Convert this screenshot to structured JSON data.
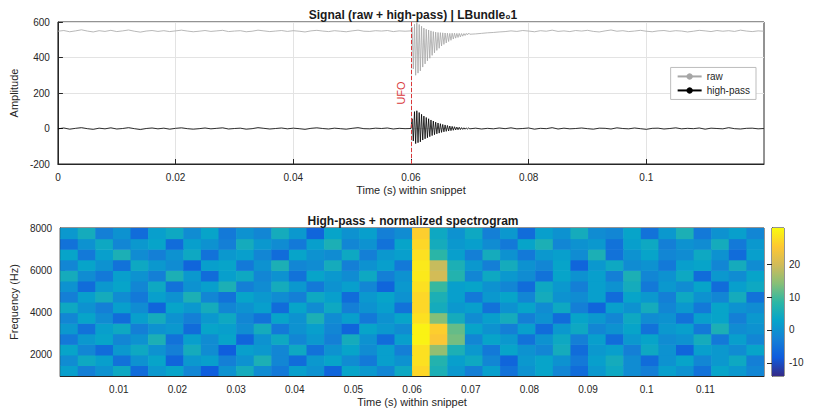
{
  "chart_data": [
    {
      "type": "line",
      "title": "Signal (raw + high-pass) | LBundle₀1",
      "x_label": "Time (s) within snippet",
      "y_label": "Amplitude",
      "x": [
        0,
        0.001,
        0.002,
        0.003,
        0.004,
        0.005,
        0.006,
        0.007,
        0.008,
        0.009,
        0.01,
        0.011,
        0.012,
        0.013,
        0.014,
        0.015,
        0.016,
        0.017,
        0.018,
        0.019,
        0.02,
        0.021,
        0.022,
        0.023,
        0.024,
        0.025,
        0.026,
        0.027,
        0.028,
        0.029,
        0.03,
        0.031,
        0.032,
        0.033,
        0.034,
        0.035,
        0.036,
        0.037,
        0.038,
        0.039,
        0.04,
        0.041,
        0.042,
        0.043,
        0.044,
        0.045,
        0.046,
        0.047,
        0.048,
        0.049,
        0.05,
        0.051,
        0.052,
        0.053,
        0.054,
        0.055,
        0.056,
        0.057,
        0.058,
        0.059,
        0.06,
        0.0602,
        0.0604,
        0.0606,
        0.0608,
        0.061,
        0.0612,
        0.0614,
        0.0616,
        0.0618,
        0.062,
        0.0622,
        0.0624,
        0.0626,
        0.0628,
        0.063,
        0.0632,
        0.0634,
        0.0636,
        0.0638,
        0.064,
        0.0642,
        0.0644,
        0.0646,
        0.0648,
        0.065,
        0.0652,
        0.0654,
        0.0656,
        0.0658,
        0.066,
        0.0662,
        0.0664,
        0.0666,
        0.0668,
        0.067,
        0.0672,
        0.0674,
        0.0676,
        0.0678,
        0.068,
        0.0682,
        0.0684,
        0.0686,
        0.0688,
        0.069,
        0.0692,
        0.0694,
        0.0696,
        0.0698,
        0.07,
        0.071,
        0.072,
        0.073,
        0.074,
        0.075,
        0.076,
        0.077,
        0.078,
        0.079,
        0.08,
        0.081,
        0.082,
        0.083,
        0.084,
        0.085,
        0.086,
        0.087,
        0.088,
        0.089,
        0.09,
        0.091,
        0.092,
        0.093,
        0.094,
        0.095,
        0.096,
        0.097,
        0.098,
        0.099,
        0.1,
        0.101,
        0.102,
        0.103,
        0.104,
        0.105,
        0.106,
        0.107,
        0.108,
        0.109,
        0.11,
        0.111,
        0.112,
        0.113,
        0.114,
        0.115,
        0.116,
        0.117,
        0.118,
        0.119,
        0.12
      ],
      "series": [
        {
          "name": "raw",
          "color": "#a6a6a6",
          "values": [
            548,
            552,
            545,
            550,
            556,
            549,
            544,
            551,
            547,
            553,
            546,
            550,
            555,
            548,
            543,
            549,
            552,
            547,
            551,
            546,
            550,
            554,
            549,
            545,
            548,
            552,
            547,
            550,
            553,
            546,
            549,
            551,
            545,
            548,
            554,
            550,
            546,
            549,
            552,
            547,
            551,
            548,
            544,
            550,
            553,
            549,
            546,
            551,
            548,
            545,
            550,
            554,
            548,
            547,
            551,
            549,
            552,
            546,
            550,
            548,
            550,
            572,
            335,
            587,
            300,
            598,
            312,
            586,
            325,
            576,
            346,
            566,
            364,
            559,
            381,
            555,
            396,
            550,
            412,
            546,
            426,
            543,
            440,
            541,
            452,
            540,
            465,
            539,
            474,
            538,
            482,
            537,
            490,
            536,
            497,
            537,
            504,
            537,
            509,
            536,
            513,
            536,
            516,
            535,
            520,
            535,
            524,
            536,
            527,
            538,
            531,
            533,
            536,
            539,
            541,
            544,
            546,
            550,
            547,
            552,
            549,
            545,
            551,
            548,
            554,
            547,
            550,
            546,
            552,
            549,
            553,
            547,
            544,
            550,
            555,
            548,
            551,
            546,
            549,
            553,
            548,
            545,
            550,
            552,
            547,
            551,
            549,
            544,
            548,
            553,
            550,
            546,
            552,
            548,
            551,
            547,
            554,
            549,
            546,
            550,
            548
          ]
        },
        {
          "name": "high-pass",
          "color": "#000000",
          "values": [
            -2,
            3,
            -4,
            1,
            5,
            -1,
            -5,
            2,
            -2,
            4,
            -3,
            0,
            5,
            -1,
            -6,
            0,
            3,
            -2,
            2,
            -4,
            1,
            4,
            -1,
            -4,
            -1,
            3,
            -2,
            1,
            4,
            -3,
            0,
            2,
            -4,
            -1,
            5,
            1,
            -3,
            0,
            3,
            -2,
            2,
            -1,
            -5,
            1,
            4,
            0,
            -3,
            2,
            -1,
            -4,
            1,
            5,
            -1,
            -2,
            2,
            0,
            3,
            -3,
            1,
            -1,
            0,
            55,
            -70,
            95,
            -85,
            100,
            -80,
            90,
            -75,
            80,
            -65,
            70,
            -58,
            62,
            -52,
            55,
            -46,
            48,
            -40,
            42,
            -35,
            36,
            -30,
            31,
            -26,
            27,
            -22,
            23,
            -19,
            20,
            -16,
            17,
            -14,
            14,
            -12,
            12,
            -10,
            10,
            -8,
            8,
            -7,
            7,
            -6,
            5,
            -5,
            4,
            -4,
            3,
            -3,
            3,
            -2,
            2,
            -3,
            1,
            -2,
            3,
            -1,
            4,
            -2,
            0,
            3,
            -4,
            1,
            -1,
            5,
            -3,
            2,
            -2,
            0,
            3,
            -1,
            -4,
            2,
            1,
            -3,
            4,
            0,
            -2,
            3,
            -1,
            -5,
            1,
            2,
            -3,
            0,
            4,
            -2,
            1,
            -1,
            3,
            -4,
            2,
            0,
            -2,
            5,
            -1,
            -3,
            1,
            2,
            -2,
            0
          ]
        }
      ],
      "xlim": [
        0,
        0.12
      ],
      "xticks": [
        0,
        0.02,
        0.04,
        0.06,
        0.08,
        0.1
      ],
      "ylim": [
        -200,
        600
      ],
      "yticks": [
        -200,
        0,
        200,
        400,
        600
      ],
      "grid": true,
      "legend": "right",
      "annotations": [
        {
          "text": "UFO",
          "x": 0.06,
          "color": "#d9383a",
          "line_style": "dashed"
        }
      ]
    },
    {
      "type": "heatmap",
      "title": "High-pass + normalized spectrogram",
      "x_label": "Time (s) within snippet",
      "y_label": "Frequency (Hz)",
      "x": [
        0.0015,
        0.0045,
        0.0075,
        0.0105,
        0.0135,
        0.0165,
        0.0195,
        0.0225,
        0.0255,
        0.0285,
        0.0315,
        0.0345,
        0.0375,
        0.0405,
        0.0435,
        0.0465,
        0.0495,
        0.0525,
        0.0555,
        0.0585,
        0.0615,
        0.0645,
        0.0675,
        0.0705,
        0.0735,
        0.0765,
        0.0795,
        0.0825,
        0.0855,
        0.0885,
        0.0915,
        0.0945,
        0.0975,
        0.1005,
        0.1035,
        0.1065,
        0.1095,
        0.1125,
        0.1155,
        0.1185
      ],
      "y": [
        1250,
        1750,
        2250,
        2750,
        3250,
        3750,
        4250,
        4750,
        5250,
        5750,
        6250,
        6750,
        7250,
        7750
      ],
      "cells": [
        [
          2,
          -3,
          0,
          4,
          -6,
          1,
          3,
          -2,
          -8,
          0,
          5,
          -1,
          -4,
          2,
          0,
          -7,
          3,
          1,
          -2,
          4,
          27,
          6,
          1,
          -3,
          2,
          -5,
          0,
          3,
          -2,
          -6,
          1,
          4,
          -1,
          -3,
          2,
          0,
          -5,
          3,
          1,
          -2
        ],
        [
          -1,
          4,
          2,
          -5,
          0,
          3,
          -7,
          1,
          2,
          -3,
          0,
          6,
          -2,
          -6,
          1,
          3,
          -1,
          -4,
          2,
          0,
          28,
          7,
          2,
          4,
          -2,
          -7,
          1,
          3,
          0,
          -4,
          2,
          5,
          -1,
          -6,
          0,
          3,
          -2,
          1,
          4,
          -3
        ],
        [
          3,
          -2,
          -6,
          1,
          4,
          0,
          -3,
          5,
          -1,
          -8,
          2,
          1,
          -2,
          4,
          -5,
          0,
          3,
          -1,
          2,
          -3,
          28,
          15,
          6,
          1,
          -4,
          3,
          0,
          -2,
          5,
          -6,
          1,
          2,
          -3,
          4,
          0,
          -7,
          2,
          1,
          -1,
          3
        ],
        [
          -4,
          1,
          3,
          -2,
          0,
          6,
          -5,
          2,
          -1,
          3,
          -7,
          0,
          4,
          -2,
          1,
          -3,
          5,
          0,
          -6,
          2,
          30,
          25,
          13,
          -2,
          3,
          1,
          -5,
          0,
          4,
          -3,
          2,
          -6,
          1,
          3,
          -1,
          0,
          5,
          -4,
          2,
          -2
        ],
        [
          1,
          -5,
          2,
          4,
          -3,
          0,
          1,
          -6,
          3,
          2,
          -1,
          5,
          -4,
          0,
          2,
          -2,
          -7,
          3,
          1,
          -1,
          30,
          26,
          12,
          3,
          0,
          -3,
          2,
          -6,
          1,
          4,
          -2,
          0,
          3,
          -5,
          1,
          2,
          -4,
          6,
          -1,
          0
        ],
        [
          -2,
          3,
          -1,
          -6,
          2,
          5,
          0,
          -3,
          1,
          4,
          -2,
          -5,
          3,
          0,
          6,
          -1,
          2,
          -4,
          0,
          3,
          28,
          14,
          5,
          -1,
          2,
          5,
          -3,
          0,
          -6,
          3,
          1,
          -2,
          4,
          -1,
          0,
          -5,
          2,
          3,
          -3,
          1
        ],
        [
          4,
          0,
          -3,
          2,
          -1,
          -7,
          3,
          1,
          5,
          -2,
          0,
          2,
          -6,
          3,
          -1,
          4,
          -3,
          0,
          2,
          -5,
          27,
          5,
          1,
          2,
          -5,
          0,
          3,
          -1,
          4,
          -3,
          -7,
          2,
          0,
          5,
          -2,
          1,
          -4,
          3,
          0,
          -1
        ],
        [
          -3,
          2,
          5,
          -1,
          -4,
          2,
          0,
          6,
          -2,
          -5,
          3,
          1,
          -1,
          -3,
          4,
          2,
          -6,
          1,
          3,
          0,
          27,
          6,
          2,
          -4,
          1,
          3,
          -2,
          5,
          0,
          -1,
          2,
          -6,
          3,
          1,
          -3,
          4,
          0,
          -2,
          5,
          -5
        ],
        [
          0,
          -6,
          1,
          3,
          -2,
          4,
          -5,
          0,
          2,
          6,
          -3,
          -1,
          5,
          1,
          -4,
          0,
          2,
          -2,
          -7,
          1,
          28,
          9,
          2,
          3,
          0,
          -2,
          -6,
          4,
          1,
          -3,
          2,
          0,
          5,
          -4,
          1,
          -1,
          3,
          -6,
          2,
          4
        ],
        [
          5,
          -1,
          -4,
          2,
          0,
          -3,
          6,
          1,
          -6,
          2,
          4,
          -2,
          0,
          -5,
          3,
          1,
          -1,
          4,
          -3,
          0,
          29,
          20,
          7,
          -2,
          4,
          1,
          -1,
          -5,
          3,
          0,
          2,
          -3,
          6,
          -2,
          0,
          4,
          -6,
          1,
          -1,
          3
        ],
        [
          -2,
          3,
          0,
          -5,
          4,
          1,
          -1,
          -7,
          2,
          3,
          -4,
          0,
          6,
          -2,
          -1,
          5,
          -3,
          0,
          2,
          -4,
          29,
          19,
          6,
          1,
          -3,
          5,
          0,
          -2,
          3,
          -7,
          1,
          4,
          -1,
          0,
          -4,
          2,
          3,
          -2,
          5,
          -1
        ],
        [
          3,
          -4,
          2,
          6,
          -1,
          -3,
          0,
          4,
          -5,
          1,
          2,
          -2,
          -6,
          3,
          0,
          -1,
          4,
          -3,
          1,
          2,
          28,
          8,
          2,
          -3,
          5,
          0,
          -4,
          1,
          2,
          -1,
          6,
          -5,
          0,
          3,
          -2,
          -1,
          4,
          0,
          -6,
          2
        ],
        [
          -5,
          0,
          4,
          -2,
          1,
          3,
          -6,
          2,
          0,
          -3,
          5,
          1,
          -1,
          -4,
          2,
          6,
          -2,
          0,
          -5,
          3,
          27,
          5,
          1,
          2,
          -1,
          -4,
          3,
          6,
          -2,
          0,
          1,
          -5,
          2,
          4,
          -3,
          0,
          -1,
          5,
          -4,
          1
        ],
        [
          1,
          5,
          -3,
          0,
          -6,
          2,
          4,
          -1,
          3,
          -4,
          0,
          -2,
          5,
          1,
          -7,
          3,
          0,
          2,
          -3,
          -1,
          26,
          4,
          0,
          4,
          -3,
          1,
          -6,
          2,
          0,
          5,
          -1,
          -2,
          3,
          -5,
          1,
          6,
          -4,
          0,
          2,
          -2
        ]
      ],
      "xlim": [
        0,
        0.12
      ],
      "xticks": [
        0.01,
        0.02,
        0.03,
        0.04,
        0.05,
        0.06,
        0.07,
        0.08,
        0.09,
        0.1,
        0.11
      ],
      "ylim": [
        1000,
        8000
      ],
      "yticks": [
        2000,
        4000,
        6000,
        8000
      ],
      "grid": false,
      "colorbar_lim": [
        -14,
        31
      ],
      "colorbar_ticks": [
        -10,
        0,
        10,
        20
      ]
    }
  ]
}
